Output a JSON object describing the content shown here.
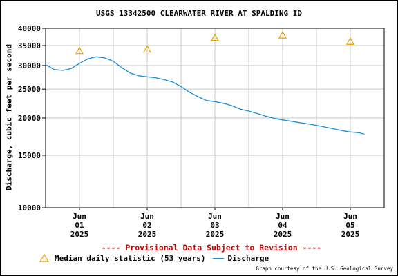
{
  "chart": {
    "title": "USGS 13342500 CLEARWATER RIVER AT SPALDING ID",
    "ylabel": "Discharge, cubic feet per second",
    "provisional_note": "---- Provisional Data Subject to Revision ----",
    "legend_median": "Median daily statistic (53 years)",
    "legend_discharge": "Discharge",
    "credit": "Graph courtesy of the U.S. Geological Survey",
    "colors": {
      "discharge": "#1a8fcf",
      "median": "#e8a000",
      "grid": "#c8c8c8",
      "provisional": "#cc0000"
    }
  },
  "chart_data": {
    "type": "line",
    "title": "USGS 13342500 CLEARWATER RIVER AT SPALDING ID",
    "ylabel": "Discharge, cubic feet per second",
    "xlabel": "",
    "yscale": "log",
    "ylim": [
      10000,
      40000
    ],
    "y_ticks": [
      10000,
      15000,
      20000,
      25000,
      30000,
      35000,
      40000
    ],
    "y_tick_labels": [
      "10000",
      "15000",
      "20000",
      "25000",
      "30000",
      "35000",
      "40000"
    ],
    "xlim": [
      "2025-05-31T12:00",
      "2025-06-05T12:00"
    ],
    "x_ticks": [
      "2025-06-01",
      "2025-06-02",
      "2025-06-03",
      "2025-06-04",
      "2025-06-05"
    ],
    "x_tick_labels": [
      [
        "Jun",
        "01",
        "2025"
      ],
      [
        "Jun",
        "02",
        "2025"
      ],
      [
        "Jun",
        "03",
        "2025"
      ],
      [
        "Jun",
        "04",
        "2025"
      ],
      [
        "Jun",
        "05",
        "2025"
      ]
    ],
    "grid": true,
    "legend_placement": "bottom",
    "series": [
      {
        "name": "Discharge",
        "x": [
          "2025-05-31T12:00",
          "2025-05-31T15:00",
          "2025-05-31T18:00",
          "2025-05-31T21:00",
          "2025-06-01T00:00",
          "2025-06-01T03:00",
          "2025-06-01T06:00",
          "2025-06-01T09:00",
          "2025-06-01T12:00",
          "2025-06-01T15:00",
          "2025-06-01T18:00",
          "2025-06-01T21:00",
          "2025-06-02T00:00",
          "2025-06-02T03:00",
          "2025-06-02T06:00",
          "2025-06-02T09:00",
          "2025-06-02T12:00",
          "2025-06-02T15:00",
          "2025-06-02T18:00",
          "2025-06-02T21:00",
          "2025-06-03T00:00",
          "2025-06-03T03:00",
          "2025-06-03T06:00",
          "2025-06-03T09:00",
          "2025-06-03T12:00",
          "2025-06-03T15:00",
          "2025-06-03T18:00",
          "2025-06-03T21:00",
          "2025-06-04T00:00",
          "2025-06-04T03:00",
          "2025-06-04T06:00",
          "2025-06-04T09:00",
          "2025-06-04T12:00",
          "2025-06-04T15:00",
          "2025-06-04T18:00",
          "2025-06-04T21:00",
          "2025-06-05T00:00",
          "2025-06-05T03:00",
          "2025-06-05T05:00"
        ],
        "y": [
          30200,
          29100,
          28900,
          29300,
          30500,
          31600,
          32100,
          31800,
          31000,
          29500,
          28300,
          27700,
          27500,
          27300,
          26900,
          26400,
          25500,
          24400,
          23600,
          22900,
          22700,
          22400,
          22000,
          21400,
          21100,
          20700,
          20300,
          19950,
          19700,
          19500,
          19300,
          19100,
          18900,
          18650,
          18400,
          18150,
          17950,
          17850,
          17650
        ]
      },
      {
        "name": "Median daily statistic (53 years)",
        "x": [
          "2025-06-01T00:00",
          "2025-06-02T00:00",
          "2025-06-03T00:00",
          "2025-06-04T00:00",
          "2025-06-05T00:00"
        ],
        "y": [
          33600,
          34000,
          37200,
          37900,
          36100
        ]
      }
    ]
  }
}
